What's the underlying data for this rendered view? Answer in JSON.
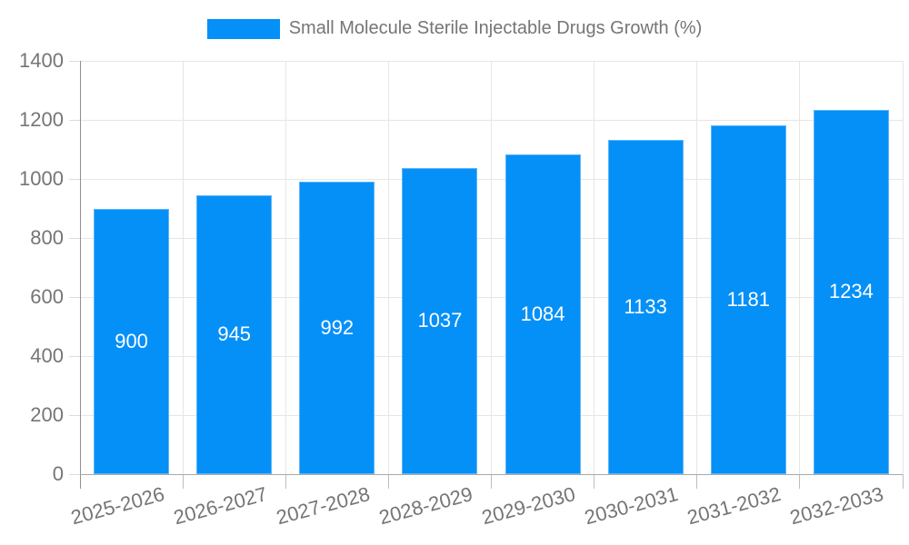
{
  "legend": {
    "label": "Small Molecule Sterile Injectable Drugs Growth (%)"
  },
  "chart_data": {
    "type": "bar",
    "title": "Small Molecule Sterile Injectable Drugs Growth (%)",
    "categories": [
      "2025-2026",
      "2026-2027",
      "2027-2028",
      "2028-2029",
      "2029-2030",
      "2030-2031",
      "2031-2032",
      "2032-2033"
    ],
    "values": [
      900,
      945,
      992,
      1037,
      1084,
      1133,
      1181,
      1234
    ],
    "value_labels": [
      "900",
      "945",
      "992",
      "1037",
      "1084",
      "1133",
      "1181",
      "1234"
    ],
    "xlabel": "",
    "ylabel": "",
    "ylim": [
      0,
      1400
    ],
    "ytick_step": 200,
    "ytick_labels": [
      "0",
      "200",
      "400",
      "600",
      "800",
      "1000",
      "1200",
      "1400"
    ],
    "grid": true,
    "legend_position": "top-center",
    "colors": {
      "bar": "#0590F8",
      "value_label": "#FFFFFF",
      "axis_text": "#757575",
      "legend_text": "#757575",
      "gridline": "#E6E6E6",
      "axis_line": "#A9A9A9"
    }
  }
}
